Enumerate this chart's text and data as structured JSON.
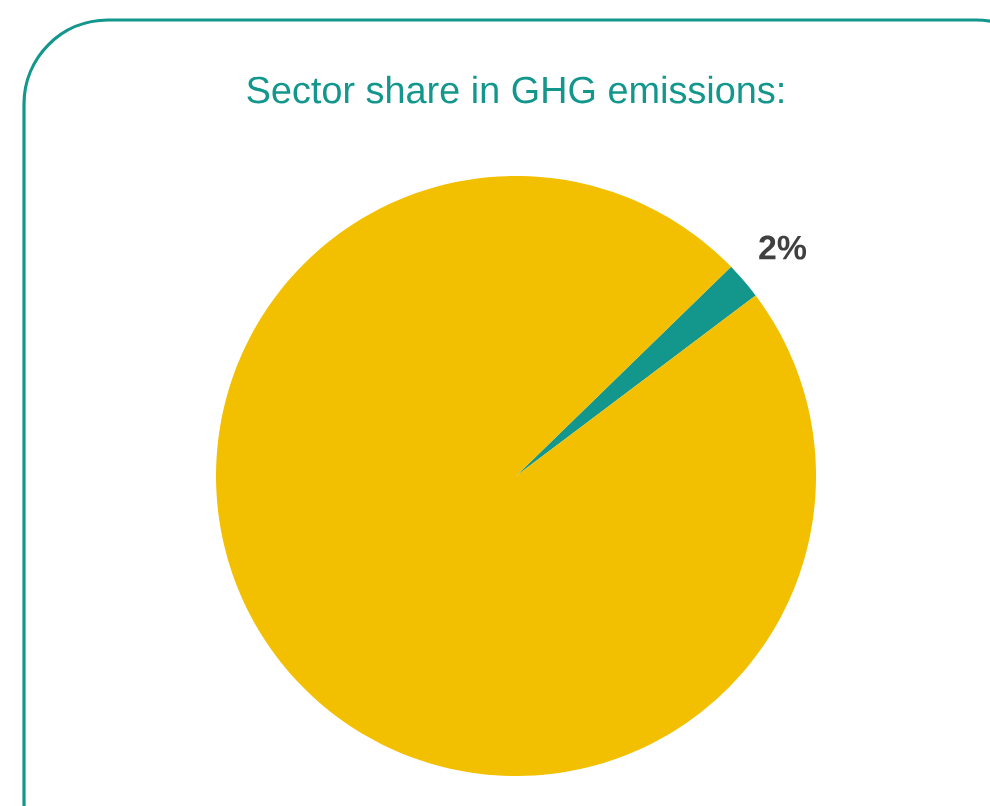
{
  "chart_data": {
    "type": "pie",
    "title": "Sector share in GHG emissions:",
    "categories": [
      null,
      null
    ],
    "values": [
      2,
      98
    ],
    "colors": [
      "#13968b",
      "#f2c000"
    ],
    "value_labels": [
      "2%",
      null
    ]
  }
}
